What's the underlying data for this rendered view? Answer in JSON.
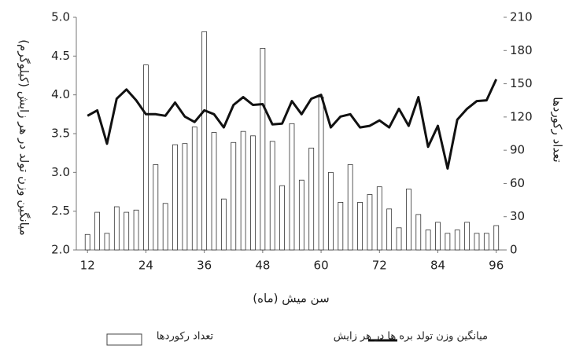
{
  "chart_data": {
    "type": "bar",
    "x_label": "سن میش (ماه)",
    "y_label": "میانگین وزن تولد در هر زایش (کیلوگرم)",
    "y2_label": "تعداد رکوردها",
    "x": [
      12,
      14,
      16,
      18,
      20,
      22,
      24,
      26,
      28,
      30,
      32,
      34,
      36,
      38,
      40,
      42,
      44,
      46,
      48,
      50,
      52,
      54,
      56,
      58,
      60,
      62,
      64,
      66,
      68,
      70,
      72,
      74,
      76,
      78,
      80,
      82,
      84,
      86,
      88,
      90,
      92,
      94,
      96
    ],
    "series": [
      {
        "name": "تعداد رکوردها",
        "type": "bar",
        "axis": "y2",
        "color": "#ffffff",
        "values": [
          14,
          34,
          15,
          39,
          34,
          36,
          167,
          77,
          42,
          95,
          96,
          111,
          197,
          106,
          46,
          97,
          107,
          103,
          182,
          98,
          58,
          114,
          63,
          92,
          138,
          70,
          43,
          77,
          43,
          50,
          57,
          37,
          20,
          55,
          32,
          18,
          25,
          15,
          18,
          25,
          15,
          15,
          22
        ]
      },
      {
        "name": "میانگین وزن تولد بره ها در هر زایش",
        "type": "line",
        "color": "#111111",
        "values": [
          3.73,
          3.8,
          3.37,
          3.95,
          4.07,
          3.93,
          3.75,
          3.75,
          3.73,
          3.9,
          3.72,
          3.65,
          3.8,
          3.75,
          3.58,
          3.87,
          3.97,
          3.87,
          3.88,
          3.62,
          3.63,
          3.92,
          3.75,
          3.95,
          4.0,
          3.58,
          3.72,
          3.75,
          3.58,
          3.6,
          3.67,
          3.58,
          3.82,
          3.6,
          3.97,
          3.33,
          3.6,
          3.05,
          3.68,
          3.82,
          3.92,
          3.93,
          4.2
        ]
      }
    ],
    "xlim": [
      9.7,
      97.5
    ],
    "xticks": [
      12,
      24,
      36,
      48,
      60,
      72,
      84,
      96
    ],
    "ylim": [
      2.0,
      5.0
    ],
    "yticks": [
      {
        "value": 2.0,
        "label": "2.0"
      },
      {
        "value": 2.5,
        "label": "2.5"
      },
      {
        "value": 3.0,
        "label": "3.0"
      },
      {
        "value": 3.5,
        "label": "3.5"
      },
      {
        "value": 4.0,
        "label": "4.0"
      },
      {
        "value": 4.5,
        "label": "4.5"
      },
      {
        "value": 5.0,
        "label": "5.0"
      }
    ],
    "y2lim": [
      0,
      210
    ],
    "y2ticks": [
      0,
      30,
      60,
      90,
      120,
      150,
      180,
      210
    ],
    "grid": false
  }
}
